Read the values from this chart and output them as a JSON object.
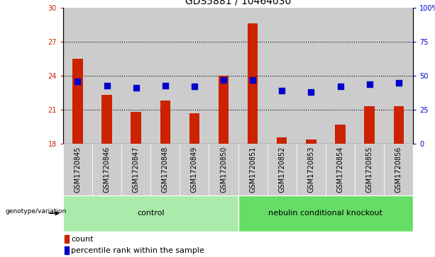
{
  "title": "GDS5881 / 10464030",
  "samples": [
    "GSM1720845",
    "GSM1720846",
    "GSM1720847",
    "GSM1720848",
    "GSM1720849",
    "GSM1720850",
    "GSM1720851",
    "GSM1720852",
    "GSM1720853",
    "GSM1720854",
    "GSM1720855",
    "GSM1720856"
  ],
  "counts": [
    25.5,
    22.3,
    20.8,
    21.8,
    20.7,
    24.0,
    28.6,
    18.6,
    18.4,
    19.7,
    21.3,
    21.3
  ],
  "percentiles": [
    46,
    43,
    41,
    43,
    42,
    47,
    47,
    39,
    38,
    42,
    44,
    45
  ],
  "bar_color": "#cc2200",
  "dot_color": "#0000cc",
  "ymin": 18,
  "ymax": 30,
  "yticks_left": [
    18,
    21,
    24,
    27,
    30
  ],
  "ytick_right_labels": [
    "0",
    "25",
    "50",
    "75",
    "100%"
  ],
  "grid_values": [
    21,
    24,
    27
  ],
  "n_control": 6,
  "n_knockout": 6,
  "control_label": "control",
  "knockout_label": "nebulin conditional knockout",
  "genotype_label": "genotype/variation",
  "legend_count": "count",
  "legend_percentile": "percentile rank within the sample",
  "control_bg": "#aaeaaa",
  "knockout_bg": "#66dd66",
  "sample_bg": "#cccccc",
  "bar_width": 0.35,
  "dot_size": 30,
  "title_fontsize": 10,
  "tick_fontsize": 7,
  "label_fontsize": 8,
  "axis_label_color_left": "#cc2200",
  "axis_label_color_right": "#0000cc"
}
